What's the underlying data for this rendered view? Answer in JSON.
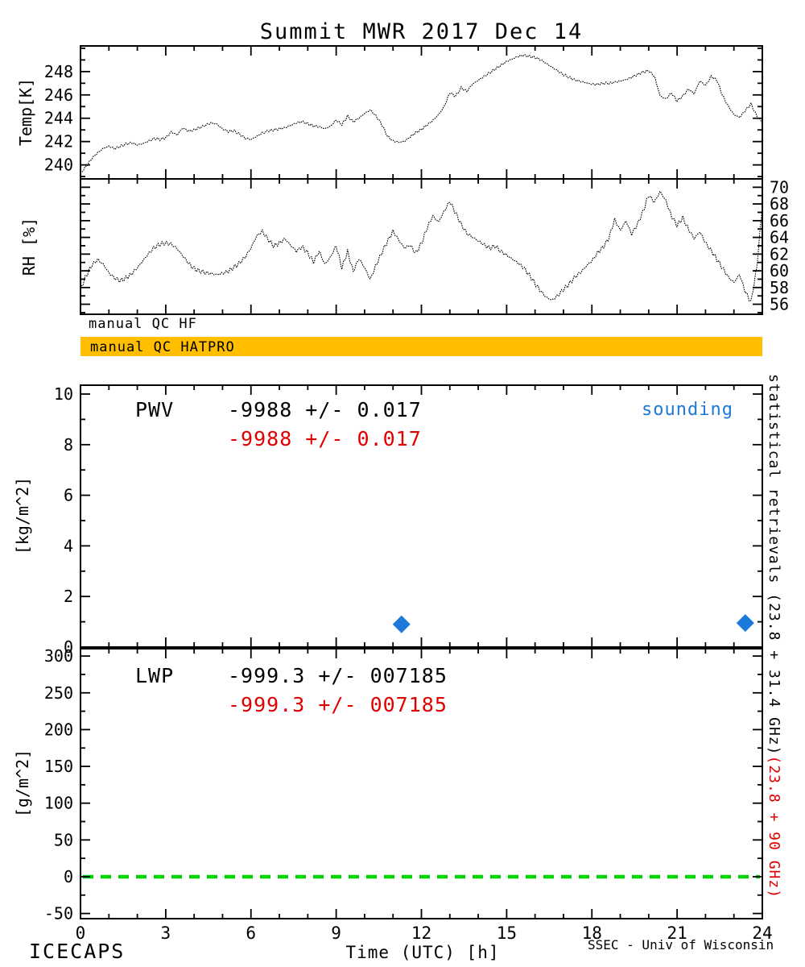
{
  "title": "Summit MWR 2017 Dec 14",
  "colors": {
    "red": "#e00000",
    "blue": "#1c79d9",
    "green": "#00d400",
    "orange": "#ffbe00",
    "black": "#000000"
  },
  "qc": {
    "hf_label": "manual QC HF",
    "hatpro_label": "manual QC HATPRO",
    "bar_color": "#ffbe00"
  },
  "annotations": {
    "pwv": {
      "label": "PWV",
      "black_value": "-9988 +/- 0.017",
      "red_value": "-9988 +/- 0.017",
      "sounding": "sounding"
    },
    "lwp": {
      "label": "LWP",
      "black_value": "-999.3 +/- 007185",
      "red_value": "-999.3 +/- 007185"
    }
  },
  "side_text": {
    "black": "statistical retrievals (23.8 + 31.4 GHz)",
    "red": "(23.8 + 90 GHz)"
  },
  "footer": {
    "left": "ICECAPS",
    "xlabel": "Time (UTC) [h]",
    "right": "SSEC - Univ of Wisconsin"
  },
  "chart_data": [
    {
      "id": "temp",
      "type": "line",
      "ylabel": "Temp[K]",
      "x_range": [
        0,
        24
      ],
      "y_range": [
        238.8,
        250.2
      ],
      "x_ticks": [
        0,
        3,
        6,
        9,
        12,
        15,
        18,
        21,
        24
      ],
      "x_minor": 1,
      "y_ticks": [
        240,
        242,
        244,
        246,
        248
      ],
      "y_minor": 1,
      "label_side": "left",
      "show_x_labels": false,
      "x_step": 0.2,
      "noise_amp": 0.22,
      "values": [
        239.3,
        239.9,
        240.6,
        241.1,
        241.5,
        241.7,
        241.5,
        241.7,
        241.9,
        242.0,
        241.8,
        241.9,
        242.1,
        242.3,
        242.2,
        242.3,
        242.8,
        242.5,
        243.1,
        242.8,
        242.9,
        243.1,
        243.3,
        243.5,
        243.4,
        243.0,
        242.8,
        242.9,
        242.6,
        242.3,
        242.2,
        242.5,
        242.8,
        243.0,
        243.1,
        243.2,
        243.3,
        243.5,
        243.7,
        243.8,
        243.6,
        243.4,
        243.3,
        243.1,
        243.3,
        243.8,
        243.4,
        244.1,
        243.6,
        243.9,
        244.3,
        244.6,
        244.1,
        243.4,
        242.4,
        242.0,
        241.9,
        242.0,
        242.4,
        242.8,
        243.1,
        243.5,
        243.9,
        244.4,
        245.1,
        246.3,
        246.0,
        246.7,
        246.4,
        247.0,
        247.3,
        247.6,
        247.9,
        248.2,
        248.5,
        248.8,
        249.0,
        249.2,
        249.3,
        249.2,
        249.1,
        248.9,
        248.6,
        248.3,
        248.0,
        247.7,
        247.5,
        247.3,
        247.2,
        247.1,
        247.0,
        247.0,
        247.1,
        247.1,
        247.2,
        247.3,
        247.4,
        247.6,
        247.8,
        248.0,
        248.1,
        247.6,
        245.9,
        245.6,
        246.1,
        245.4,
        245.8,
        246.4,
        246.0,
        247.1,
        246.7,
        247.5,
        247.2,
        245.9,
        245.0,
        244.3,
        244.1,
        244.7,
        245.3,
        244.3,
        243.7
      ]
    },
    {
      "id": "rh",
      "type": "line",
      "ylabel": "RH [%]",
      "x_range": [
        0,
        24
      ],
      "y_range": [
        54.8,
        71.0
      ],
      "x_ticks": [
        0,
        3,
        6,
        9,
        12,
        15,
        18,
        21,
        24
      ],
      "x_minor": 1,
      "y_ticks": [
        56,
        58,
        60,
        62,
        64,
        66,
        68,
        70
      ],
      "y_minor": 1,
      "label_side": "right",
      "show_x_labels": false,
      "x_step": 0.2,
      "noise_amp": 0.55,
      "values": [
        57.8,
        59.5,
        60.8,
        61.5,
        61.0,
        60.0,
        59.4,
        59.1,
        59.4,
        59.9,
        60.6,
        61.4,
        62.2,
        62.9,
        63.2,
        63.3,
        63.1,
        62.5,
        61.6,
        60.7,
        60.0,
        59.7,
        59.5,
        59.4,
        59.3,
        59.5,
        59.8,
        60.3,
        60.9,
        61.7,
        62.8,
        64.3,
        64.9,
        64.0,
        63.2,
        63.6,
        64.1,
        63.3,
        62.6,
        63.1,
        62.3,
        61.2,
        62.4,
        60.8,
        61.6,
        62.9,
        60.2,
        62.1,
        59.7,
        61.2,
        60.1,
        58.7,
        60.4,
        61.9,
        63.3,
        64.6,
        63.6,
        62.7,
        63.1,
        62.2,
        63.4,
        65.3,
        66.8,
        66.1,
        67.4,
        68.6,
        67.2,
        65.8,
        64.7,
        64.2,
        63.7,
        63.2,
        62.7,
        62.9,
        62.2,
        61.7,
        61.2,
        60.7,
        60.1,
        59.2,
        58.2,
        57.3,
        56.6,
        56.3,
        56.9,
        57.7,
        58.4,
        59.3,
        59.9,
        60.7,
        61.4,
        62.4,
        63.1,
        64.2,
        66.4,
        65.1,
        66.2,
        64.6,
        65.7,
        67.2,
        69.1,
        68.2,
        69.4,
        68.3,
        66.4,
        65.2,
        66.1,
        64.7,
        63.6,
        64.4,
        63.1,
        62.2,
        61.2,
        60.2,
        59.2,
        58.6,
        59.6,
        57.6,
        56.4,
        60.5,
        68.0
      ]
    },
    {
      "id": "pwv",
      "type": "scatter",
      "ylabel": "[kg/m^2]",
      "x_range": [
        0,
        24
      ],
      "y_range": [
        0,
        10.35
      ],
      "x_ticks": [
        0,
        3,
        6,
        9,
        12,
        15,
        18,
        21,
        24
      ],
      "x_minor": 1,
      "y_ticks": [
        0,
        2,
        4,
        6,
        8,
        10
      ],
      "y_minor": 1,
      "label_side": "left",
      "show_x_labels": false,
      "marker_color": "#1c79d9",
      "markers": [
        {
          "x": 11.3,
          "y": 0.9
        },
        {
          "x": 23.4,
          "y": 0.95
        }
      ]
    },
    {
      "id": "lwp",
      "type": "line",
      "ylabel": "[g/m^2]",
      "x_range": [
        0,
        24
      ],
      "y_range": [
        -57,
        310
      ],
      "x_ticks": [
        0,
        3,
        6,
        9,
        12,
        15,
        18,
        21,
        24
      ],
      "x_minor": 1,
      "y_ticks": [
        -50,
        0,
        50,
        100,
        150,
        200,
        250,
        300
      ],
      "y_minor": 25,
      "label_side": "left",
      "show_x_labels": true,
      "zero_line": {
        "y": 0,
        "color": "#00d400"
      }
    }
  ]
}
